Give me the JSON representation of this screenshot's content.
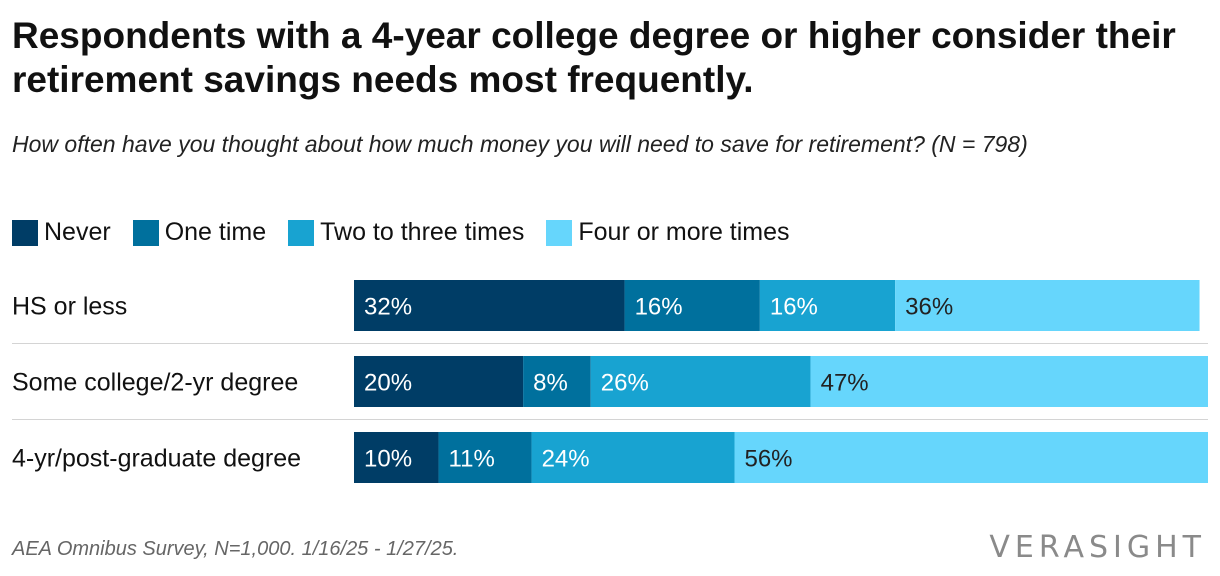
{
  "title": "Respondents with a 4-year college degree or higher consider their retirement savings needs most frequently.",
  "subtitle": "How often have you thought about how much money you will need to save for retirement? (N = 798)",
  "source": "AEA Omnibus Survey, N=1,000. 1/16/25 - 1/27/25.",
  "logo_text": "VERASIGHT",
  "legend": [
    {
      "label": "Never",
      "color": "#003d66"
    },
    {
      "label": "One time",
      "color": "#00709d"
    },
    {
      "label": "Two to three times",
      "color": "#18a3d1"
    },
    {
      "label": "Four or more times",
      "color": "#66d6fc"
    }
  ],
  "chart_data": {
    "type": "bar",
    "orientation": "horizontal",
    "stacked": true,
    "categories": [
      "HS or less",
      "Some college/2-yr degree",
      "4-yr/post-graduate degree"
    ],
    "series": [
      {
        "name": "Never",
        "values": [
          32,
          20,
          10
        ],
        "color": "#003d66"
      },
      {
        "name": "One time",
        "values": [
          16,
          8,
          11
        ],
        "color": "#00709d"
      },
      {
        "name": "Two to three times",
        "values": [
          16,
          26,
          24
        ],
        "color": "#18a3d1"
      },
      {
        "name": "Four or more times",
        "values": [
          36,
          47,
          56
        ],
        "color": "#66d6fc"
      }
    ],
    "unit": "%",
    "xlim": [
      0,
      101
    ],
    "legend_position": "top-left"
  }
}
